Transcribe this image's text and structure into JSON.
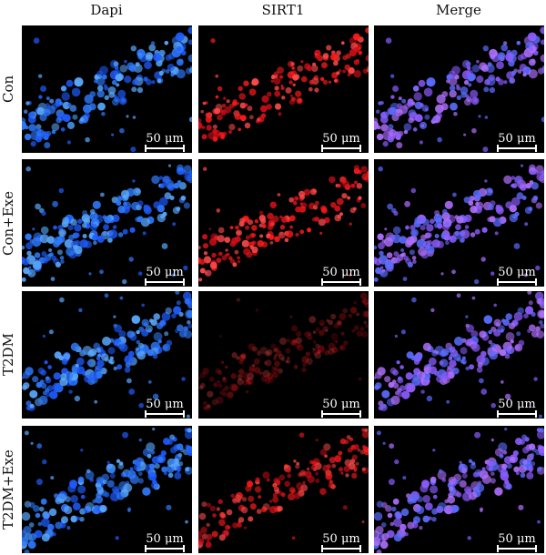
{
  "columns": [
    "Dapi",
    "SIRT1",
    "Merge"
  ],
  "rows": [
    "Con",
    "Con+Exe",
    "T2DM",
    "T2DM+Exe"
  ],
  "scale_bar_text": "50 μm",
  "channel_colors": {
    "Dapi": [
      "#1f5cff",
      "#2f7bff",
      "#5aa9ff"
    ],
    "SIRT1": [
      "#ff1b1b",
      "#d40f1a",
      "#ff4a4a"
    ],
    "Merge": [
      "#8c5cff",
      "#b070ff",
      "#5a6cff"
    ]
  },
  "sirt1_intensity": [
    1.0,
    1.0,
    0.35,
    0.85
  ]
}
